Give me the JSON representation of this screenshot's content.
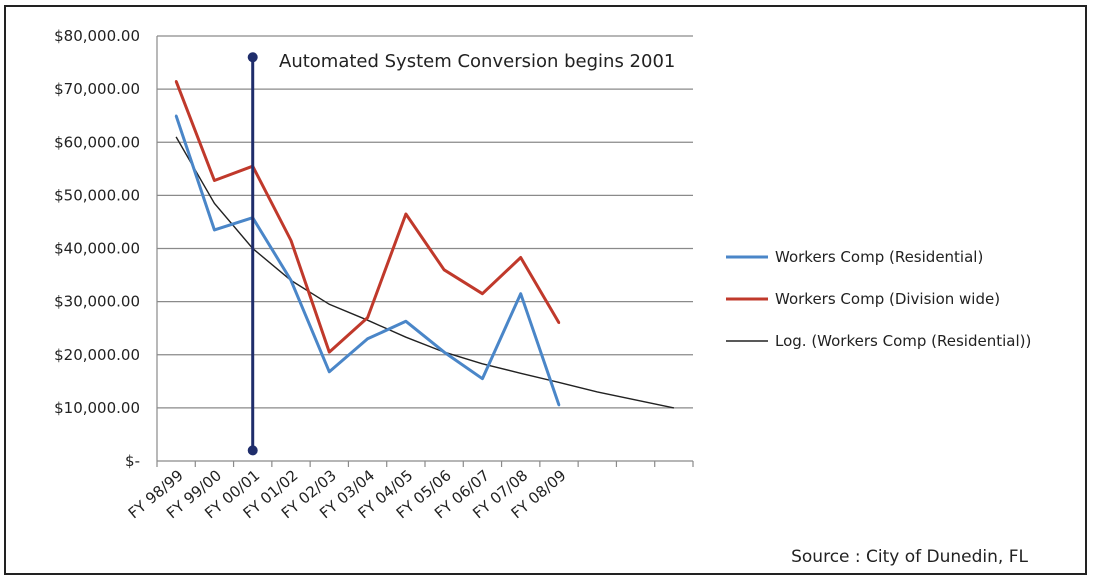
{
  "chart_data": {
    "type": "line",
    "title": "",
    "xlabel": "",
    "ylabel": "",
    "categories": [
      "FY 98/99",
      "FY 99/00",
      "FY 00/01",
      "FY 01/02",
      "FY 02/03",
      "FY 03/04",
      "FY 04/05",
      "FY 05/06",
      "FY 06/07",
      "FY 07/08",
      "FY 08/09"
    ],
    "y_ticks": [
      {
        "value": 0,
        "label": "$-"
      },
      {
        "value": 10000,
        "label": "$10,000.00"
      },
      {
        "value": 20000,
        "label": "$20,000.00"
      },
      {
        "value": 30000,
        "label": "$30,000.00"
      },
      {
        "value": 40000,
        "label": "$40,000.00"
      },
      {
        "value": 50000,
        "label": "$50,000.00"
      },
      {
        "value": 60000,
        "label": "$60,000.00"
      },
      {
        "value": 70000,
        "label": "$70,000.00"
      },
      {
        "value": 80000,
        "label": "$80,000.00"
      }
    ],
    "ylim": [
      0,
      80000
    ],
    "grid": true,
    "legend_position": "right",
    "series": [
      {
        "name": "Workers Comp (Residential)",
        "color": "#4a86c8",
        "values": [
          65000,
          43500,
          45800,
          34000,
          16800,
          23000,
          26300,
          20500,
          15500,
          31500,
          10500
        ]
      },
      {
        "name": "Workers Comp (Division wide)",
        "color": "#c0392b",
        "values": [
          71500,
          52800,
          55500,
          41500,
          20500,
          27000,
          46500,
          36000,
          31500,
          38300,
          26000
        ]
      }
    ],
    "trendline": {
      "name": "Log. (Workers Comp (Residential))",
      "color": "#222222",
      "values": [
        61000,
        48500,
        40000,
        34000,
        29500,
        26500,
        23300,
        20500,
        18300,
        16500,
        14800,
        13000,
        11500,
        10000
      ]
    },
    "marker": {
      "category": "FY 00/01",
      "y_range": [
        2000,
        76000
      ],
      "color": "#1f2d6b",
      "label": "Automated System Conversion begins 2001"
    },
    "source": "Source : City of Dunedin, FL"
  }
}
